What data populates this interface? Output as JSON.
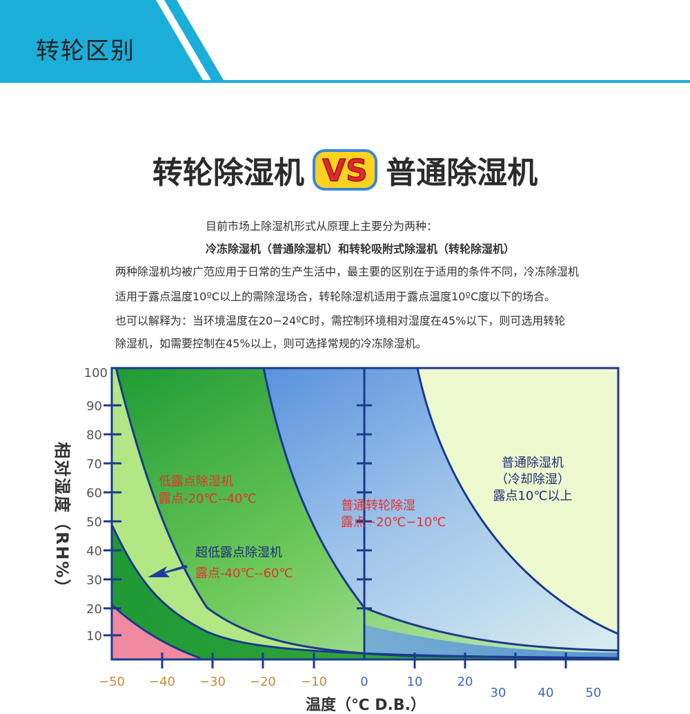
{
  "banner": {
    "title": "转轮区别",
    "accent_color": "#1aaed9"
  },
  "hero": {
    "left": "转轮除湿机",
    "vs": "VS",
    "right": "普通除湿机"
  },
  "intro": {
    "line1": "目前市场上除湿机形式从原理上主要分为两种：",
    "line2": "冷冻除湿机（普通除湿机）和转轮吸附式除湿机（转轮除湿机）",
    "line3": "两种除湿机均被广范应用于日常的生产生活中，最主要的区别在于适用的条件不同，冷冻除湿机",
    "line4": "适用于露点温度10ºC以上的需除湿场合，转轮除湿机适用于露点温度10ºC度以下的场合。",
    "line5": "也可以解释为：当环境温度在20−24ºC时，需控制环境相对湿度在45%以下，则可选用转轮",
    "line6": "除湿机，如需要控制在45%以上，则可选择常规的冷冻除湿机。"
  },
  "chart": {
    "y_axis_label": "相对湿度（RH%）",
    "x_axis_label": "温度（℃ D.B.）",
    "y_ticks": [
      "100",
      "90",
      "80",
      "70",
      "60",
      "50",
      "40",
      "30",
      "20",
      "10"
    ],
    "x_ticks_negative": [
      "−50",
      "−40",
      "−30",
      "−20",
      "−10"
    ],
    "x_ticks_positive": [
      "0",
      "10",
      "20"
    ],
    "x_ticks_lower": [
      "30",
      "40",
      "50"
    ],
    "regions": {
      "ordinary": {
        "name": "普通除湿机",
        "sub": "（冷却除湿）",
        "dew": "露点10℃以上"
      },
      "rotary": {
        "name": "普通转轮除湿",
        "dew": "露点−20℃−10℃"
      },
      "low": {
        "name": "低露点除湿机",
        "dew": "露点-20℃--40℃"
      },
      "ultra": {
        "name": "超低露点除湿机",
        "dew": "露点-40℃--60℃"
      }
    },
    "colors": {
      "frame": "#1a3a8c",
      "red_text": "#e8302f",
      "navy_text": "#1c2f7a",
      "pale": "#eef8cf",
      "blue": "#4f8fe0",
      "green": "#23a13c",
      "light_green": "#a9e47a",
      "pink": "#f08aa0"
    }
  }
}
